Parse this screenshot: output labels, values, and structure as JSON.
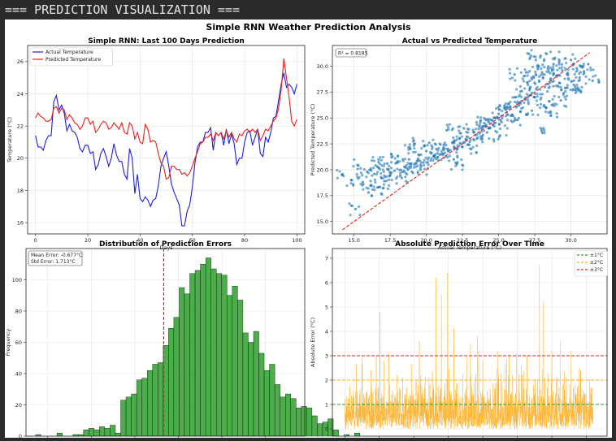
{
  "console": {
    "header": "=== PREDICTION VISUALIZATION ==="
  },
  "figure": {
    "suptitle": "Simple RNN Weather Prediction Analysis"
  },
  "colors": {
    "actual": "#1f1fd6",
    "predicted": "#e82020",
    "scatter": "#1f77b4",
    "hist": "#2ca02c",
    "error": "#ffb22b",
    "band1": "#2ca02c",
    "band2": "#ffb22b",
    "band3": "#e82020"
  },
  "chart_data": [
    {
      "type": "line",
      "title": "Simple RNN: Last 100 Days Prediction",
      "xlabel": "Days",
      "ylabel": "Temperature (°C)",
      "xlim": [
        -3,
        103
      ],
      "ylim": [
        15.3,
        27.0
      ],
      "xticks": [
        0,
        20,
        40,
        60,
        80,
        100
      ],
      "yticks": [
        16,
        18,
        20,
        22,
        24,
        26
      ],
      "grid": true,
      "legend_position": "top-left",
      "series": [
        {
          "name": "Actual Temperature",
          "color": "#1f1fd6",
          "values": [
            21.4,
            20.7,
            20.7,
            20.5,
            21.1,
            21.4,
            21.4,
            23.5,
            23.9,
            23.0,
            23.3,
            22.8,
            21.7,
            22.1,
            21.7,
            21.6,
            21.3,
            20.6,
            20.4,
            20.8,
            20.8,
            20.3,
            20.4,
            19.3,
            19.6,
            20.3,
            20.6,
            20.1,
            19.5,
            20.0,
            20.9,
            20.2,
            19.8,
            19.8,
            19.0,
            18.7,
            20.6,
            20.0,
            17.8,
            19.0,
            17.5,
            17.3,
            17.6,
            17.4,
            17.0,
            17.4,
            17.5,
            18.3,
            19.5,
            20.0,
            20.4,
            19.5,
            18.4,
            17.9,
            17.5,
            17.1,
            15.8,
            15.8,
            16.7,
            17.1,
            18.2,
            19.7,
            20.7,
            21.0,
            21.0,
            21.6,
            21.6,
            21.9,
            20.5,
            21.6,
            21.4,
            21.6,
            20.8,
            21.8,
            20.9,
            21.5,
            20.9,
            19.6,
            20.0,
            20.0,
            21.0,
            21.6,
            21.7,
            20.8,
            21.3,
            21.8,
            20.3,
            20.1,
            21.3,
            21.0,
            21.6,
            22.5,
            22.6,
            23.6,
            24.6,
            25.3,
            24.4,
            24.6,
            24.4,
            24.0,
            24.6
          ]
        },
        {
          "name": "Predicted Temperature",
          "color": "#e82020",
          "values": [
            22.5,
            22.8,
            22.6,
            22.5,
            22.3,
            22.3,
            22.4,
            23.1,
            23.2,
            22.8,
            23.1,
            23.0,
            22.4,
            22.7,
            22.5,
            22.2,
            22.1,
            21.8,
            22.0,
            22.5,
            22.5,
            22.1,
            22.3,
            21.6,
            21.8,
            22.1,
            22.3,
            22.2,
            21.8,
            21.9,
            22.2,
            22.0,
            21.8,
            22.2,
            21.6,
            21.5,
            22.2,
            22.0,
            21.2,
            21.6,
            21.0,
            20.9,
            22.1,
            21.8,
            21.0,
            21.1,
            21.0,
            20.3,
            19.7,
            19.5,
            18.7,
            18.8,
            19.5,
            19.5,
            19.3,
            19.3,
            19.0,
            19.1,
            18.9,
            19.1,
            19.5,
            20.0,
            20.4,
            20.9,
            21.0,
            21.3,
            21.3,
            21.5,
            21.1,
            21.6,
            21.4,
            21.6,
            21.2,
            21.7,
            21.3,
            21.6,
            21.2,
            21.0,
            21.5,
            21.4,
            21.7,
            21.8,
            21.6,
            21.8,
            21.6,
            21.8,
            21.1,
            21.4,
            21.8,
            21.7,
            22.0,
            22.3,
            22.5,
            23.1,
            24.3,
            26.2,
            25.0,
            23.8,
            22.3,
            22.0,
            22.4
          ]
        }
      ]
    },
    {
      "type": "scatter",
      "title": "Actual vs Predicted Temperature",
      "xlabel": "Actual Temperature (°C)",
      "ylabel": "Predicted Temperature (°C)",
      "xlim": [
        13.5,
        32.5
      ],
      "ylim": [
        13.8,
        32.0
      ],
      "xticks": [
        15.0,
        17.5,
        20.0,
        22.5,
        25.0,
        27.5,
        30.0
      ],
      "yticks": [
        15.0,
        17.5,
        20.0,
        22.5,
        25.0,
        27.5,
        30.0
      ],
      "grid": true,
      "annotation": "R² = 0.8185",
      "reference_line": {
        "x": [
          14.2,
          31.3
        ],
        "y": [
          14.2,
          31.3
        ],
        "style": "dashed",
        "color": "#e82020"
      },
      "series": [
        {
          "name": "",
          "color": "#1f77b4",
          "x": [
            14.2,
            14.8,
            15.3,
            15.6,
            15.9,
            16.2,
            16.4,
            16.6,
            16.9,
            17.1,
            17.3,
            17.5,
            17.8,
            18.0,
            18.2,
            18.5,
            18.8,
            19.0,
            19.3,
            19.5,
            19.8,
            20.0,
            20.3,
            20.5,
            20.7,
            21.0,
            21.2,
            21.5,
            21.8,
            22.0,
            22.3,
            22.5,
            22.8,
            23.0,
            23.3,
            23.5,
            23.8,
            24.0,
            24.2,
            24.5,
            24.7,
            25.0,
            25.2,
            25.5,
            25.7,
            26.0,
            26.2,
            26.4,
            26.6,
            26.8,
            27.0,
            27.2,
            27.4,
            27.6,
            27.8,
            28.0,
            28.2,
            28.4,
            28.6,
            28.8,
            29.0,
            29.2,
            29.4,
            29.6,
            29.8,
            30.0,
            30.2,
            30.4,
            30.6,
            30.9,
            31.2,
            31.5,
            15.1,
            16.0,
            17.0,
            18.3,
            19.6,
            20.8,
            21.9,
            23.1,
            24.3,
            25.4,
            26.5,
            27.5,
            28.5,
            29.5,
            17.6,
            18.9,
            20.2,
            21.4,
            22.6,
            23.9,
            25.1,
            26.3,
            27.3,
            28.3,
            29.3,
            30.3,
            16.7,
            19.2,
            22.1,
            24.8,
            26.9,
            28.9,
            30.7,
            27.9,
            28.1,
            27.7,
            28.6,
            27.1,
            26.1
          ],
          "y": [
            19.5,
            19.0,
            20.4,
            18.8,
            19.8,
            18.5,
            19.6,
            20.3,
            19.2,
            18.9,
            20.6,
            19.5,
            19.9,
            20.8,
            19.4,
            20.3,
            21.0,
            19.8,
            20.6,
            21.4,
            20.7,
            21.8,
            20.9,
            21.3,
            22.0,
            21.5,
            22.4,
            21.8,
            22.6,
            22.1,
            23.0,
            22.2,
            23.2,
            22.7,
            23.6,
            23.0,
            24.0,
            24.5,
            23.6,
            24.8,
            24.2,
            25.4,
            24.6,
            25.8,
            26.4,
            25.2,
            27.0,
            26.2,
            27.6,
            26.8,
            28.4,
            27.2,
            29.0,
            27.8,
            28.6,
            29.4,
            28.0,
            29.8,
            28.8,
            30.2,
            29.1,
            28.4,
            29.6,
            27.9,
            29.2,
            30.6,
            28.2,
            29.8,
            28.9,
            29.5,
            30.2,
            28.6,
            16.2,
            17.8,
            18.2,
            19.2,
            20.0,
            21.2,
            21.0,
            22.0,
            24.6,
            26.2,
            25.6,
            27.0,
            26.6,
            27.4,
            21.2,
            22.0,
            22.6,
            23.8,
            24.0,
            24.2,
            23.3,
            24.8,
            25.7,
            26.0,
            26.7,
            28.0,
            21.0,
            22.5,
            20.6,
            25.0,
            29.4,
            30.8,
            27.6,
            31.0,
            24.0,
            30.0,
            25.5,
            31.2,
            29.2
          ]
        }
      ]
    },
    {
      "type": "bar",
      "title": "Distribution of Prediction Errors",
      "xlabel": "Prediction Error (°C)",
      "ylabel": "Frequency",
      "xlim": [
        -7.0,
        5.8
      ],
      "ylim": [
        0,
        120
      ],
      "xticks": [
        -6,
        -4,
        -2,
        0,
        2,
        4
      ],
      "yticks": [
        0,
        20,
        40,
        60,
        80,
        100
      ],
      "grid": true,
      "bin_start": -6.8,
      "bin_width": 0.244,
      "vline": {
        "x": -0.677,
        "style": "dashed",
        "color": "#e82020"
      },
      "annotation": [
        "Mean Error: -0.677°C",
        "Std Error: 1.713°C"
      ],
      "values": [
        0,
        1,
        0,
        0,
        0,
        2,
        0,
        0,
        1,
        1,
        4,
        5,
        4,
        6,
        5,
        7,
        2,
        23,
        25,
        27,
        36,
        37,
        42,
        46,
        47,
        58,
        69,
        76,
        95,
        91,
        104,
        106,
        110,
        114,
        107,
        104,
        103,
        90,
        96,
        87,
        66,
        60,
        67,
        53,
        42,
        46,
        33,
        25,
        27,
        24,
        18,
        19,
        18,
        13,
        8,
        9,
        11,
        4,
        0,
        1,
        0,
        2
      ]
    },
    {
      "type": "line",
      "title": "Absolute Prediction Error Over Time",
      "xlabel": "Time Steps",
      "ylabel": "Absolute Error (°C)",
      "xlim": [
        -90,
        1900
      ],
      "ylim": [
        -0.3,
        7.4
      ],
      "xticks": [
        0,
        250,
        500,
        750,
        1000,
        1250,
        1500,
        1750
      ],
      "yticks": [
        0,
        1,
        2,
        3,
        4,
        5,
        6,
        7
      ],
      "grid": true,
      "legend_position": "top-right",
      "hlines": [
        {
          "name": "±1°C",
          "y": 1,
          "color": "#2ca02c"
        },
        {
          "name": "±2°C",
          "y": 2,
          "color": "#ffb22b"
        },
        {
          "name": "±3°C",
          "y": 3,
          "color": "#e82020"
        }
      ],
      "series": [
        {
          "name": "",
          "color": "#ffb22b",
          "n": 1800,
          "peaks": [
            [
              255,
              4.8
            ],
            [
              285,
              2.8
            ],
            [
              320,
              3.1
            ],
            [
              540,
              3.6
            ],
            [
              660,
              6.2
            ],
            [
              700,
              5.5
            ],
            [
              745,
              6.4
            ],
            [
              790,
              4.1
            ],
            [
              910,
              3.5
            ],
            [
              960,
              3.8
            ],
            [
              1000,
              2.8
            ],
            [
              1110,
              3.2
            ],
            [
              1190,
              3.0
            ],
            [
              1245,
              3.1
            ],
            [
              1280,
              2.6
            ],
            [
              1320,
              3.0
            ],
            [
              1410,
              6.7
            ],
            [
              1440,
              5.2
            ],
            [
              1500,
              3.2
            ],
            [
              1560,
              3.6
            ],
            [
              1640,
              3.2
            ],
            [
              1700,
              2.5
            ]
          ]
        }
      ]
    }
  ]
}
